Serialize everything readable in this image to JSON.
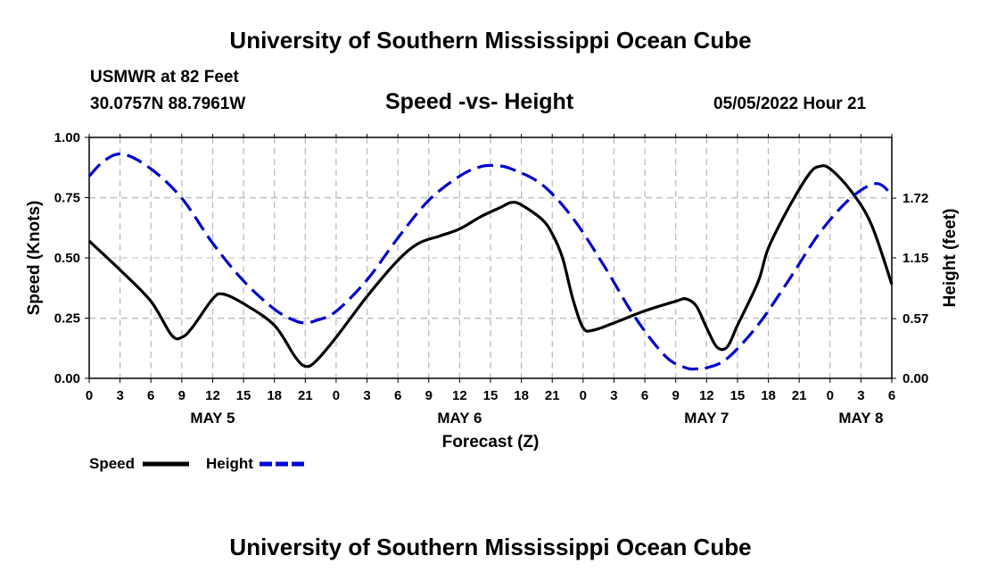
{
  "page": {
    "title_top": "University of Southern Mississippi Ocean Cube",
    "title_bottom": "University of Southern Mississippi Ocean Cube",
    "station": "USMWR at 82 Feet",
    "coords": "30.0757N  88.7961W",
    "subtitle": "Speed -vs- Height",
    "datetime": "05/05/2022 Hour 21"
  },
  "chart_data": {
    "type": "line",
    "title": "Speed -vs- Height",
    "xlabel": "Forecast (Z)",
    "ylabel": "Speed (Knots)",
    "y2label": "Height (feet)",
    "x_hours_range": [
      0,
      78
    ],
    "x_tick_step_hours": 3,
    "x_tick_labels": [
      "0",
      "3",
      "6",
      "9",
      "12",
      "15",
      "18",
      "21",
      "0",
      "3",
      "6",
      "9",
      "12",
      "15",
      "18",
      "21",
      "0",
      "3",
      "6",
      "9",
      "12",
      "15",
      "18",
      "21",
      "0",
      "3",
      "6"
    ],
    "day_labels": [
      {
        "label": "MAY 5",
        "hour": 12
      },
      {
        "label": "MAY 6",
        "hour": 36
      },
      {
        "label": "MAY 7",
        "hour": 60
      },
      {
        "label": "MAY 8",
        "hour": 75
      }
    ],
    "ylim": [
      0,
      1.0
    ],
    "y_ticks": [
      0,
      0.25,
      0.5,
      0.75,
      1.0
    ],
    "y_tick_labels": [
      "0.00",
      "0.25",
      "0.50",
      "0.75",
      "1.00"
    ],
    "y2lim": [
      0,
      2.3
    ],
    "y2_ticks": [
      0,
      0.57,
      1.15,
      1.72
    ],
    "y2_tick_labels": [
      "0.00",
      "0.57",
      "1.15",
      "1.72"
    ],
    "series": [
      {
        "name": "Speed",
        "axis": "left",
        "color": "#000000",
        "dashed": false,
        "points": [
          [
            0,
            0.57
          ],
          [
            3,
            0.45
          ],
          [
            6,
            0.32
          ],
          [
            8,
            0.18
          ],
          [
            9,
            0.17
          ],
          [
            10,
            0.21
          ],
          [
            12,
            0.33
          ],
          [
            13,
            0.35
          ],
          [
            15,
            0.31
          ],
          [
            18,
            0.22
          ],
          [
            20,
            0.09
          ],
          [
            21,
            0.05
          ],
          [
            22,
            0.07
          ],
          [
            24,
            0.17
          ],
          [
            27,
            0.34
          ],
          [
            30,
            0.49
          ],
          [
            32,
            0.56
          ],
          [
            34,
            0.59
          ],
          [
            36,
            0.62
          ],
          [
            38,
            0.67
          ],
          [
            40,
            0.71
          ],
          [
            41,
            0.73
          ],
          [
            42,
            0.72
          ],
          [
            44,
            0.66
          ],
          [
            45,
            0.6
          ],
          [
            46,
            0.5
          ],
          [
            47,
            0.33
          ],
          [
            48,
            0.21
          ],
          [
            49,
            0.2
          ],
          [
            51,
            0.23
          ],
          [
            54,
            0.28
          ],
          [
            57,
            0.32
          ],
          [
            58,
            0.33
          ],
          [
            59,
            0.3
          ],
          [
            60,
            0.21
          ],
          [
            61,
            0.13
          ],
          [
            62,
            0.13
          ],
          [
            63,
            0.22
          ],
          [
            65,
            0.4
          ],
          [
            66,
            0.54
          ],
          [
            68,
            0.71
          ],
          [
            70,
            0.85
          ],
          [
            71,
            0.88
          ],
          [
            72,
            0.87
          ],
          [
            74,
            0.78
          ],
          [
            76,
            0.64
          ],
          [
            78,
            0.39
          ]
        ]
      },
      {
        "name": "Height",
        "axis": "right",
        "color": "#0000cc",
        "dashed": true,
        "points": [
          [
            0,
            1.93
          ],
          [
            1.5,
            2.08
          ],
          [
            3.3,
            2.14
          ],
          [
            6,
            2.0
          ],
          [
            9,
            1.72
          ],
          [
            12,
            1.29
          ],
          [
            15,
            0.93
          ],
          [
            18,
            0.66
          ],
          [
            20,
            0.55
          ],
          [
            21,
            0.53
          ],
          [
            22,
            0.55
          ],
          [
            24,
            0.64
          ],
          [
            27,
            0.94
          ],
          [
            30,
            1.34
          ],
          [
            33,
            1.7
          ],
          [
            36,
            1.93
          ],
          [
            38,
            2.02
          ],
          [
            39.5,
            2.03
          ],
          [
            41,
            2.0
          ],
          [
            44,
            1.85
          ],
          [
            47,
            1.53
          ],
          [
            50,
            1.08
          ],
          [
            53,
            0.59
          ],
          [
            56,
            0.21
          ],
          [
            58,
            0.1
          ],
          [
            59,
            0.09
          ],
          [
            60,
            0.1
          ],
          [
            62,
            0.19
          ],
          [
            65,
            0.51
          ],
          [
            68,
            0.94
          ],
          [
            71,
            1.39
          ],
          [
            74,
            1.72
          ],
          [
            76.5,
            1.86
          ],
          [
            78,
            1.75
          ]
        ]
      }
    ],
    "legend": [
      {
        "label": "Speed",
        "color": "#000000",
        "dashed": false
      },
      {
        "label": "Height",
        "color": "#0000cc",
        "dashed": true
      }
    ],
    "legend_position": "bottom-left",
    "grid": true
  }
}
